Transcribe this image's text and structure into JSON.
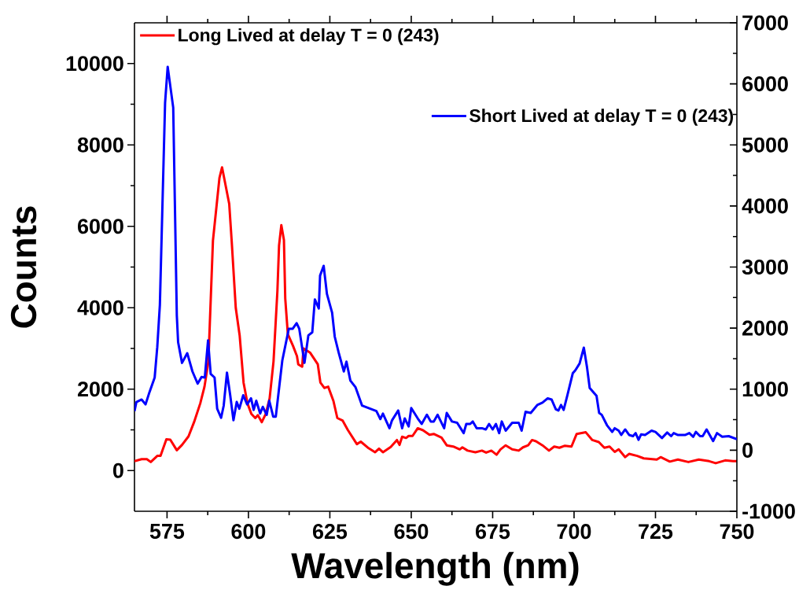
{
  "chart_data": {
    "type": "line",
    "xlabel": "Wavelength (nm)",
    "ylabel": "Counts",
    "xlim": [
      565,
      750
    ],
    "xticks": [
      575,
      600,
      625,
      650,
      675,
      700,
      725,
      750
    ],
    "ylim": [
      -1000,
      11000
    ],
    "yticks": [
      0,
      2000,
      4000,
      6000,
      8000,
      10000
    ],
    "y2lim": [
      -1000,
      7000
    ],
    "y2ticks": [
      -1000,
      0,
      1000,
      2000,
      3000,
      4000,
      5000,
      6000,
      7000
    ],
    "legend": "top left",
    "marker": "none",
    "line_style": "solid",
    "grid": false,
    "series": [
      {
        "name": "Long Lived at delay T = 0 (243)",
        "color": "#ff0000",
        "x": [
          565,
          567.2,
          568.8,
          570,
          572,
          573,
          574.8,
          576,
          578,
          579.6,
          581.6,
          583.3,
          585.2,
          586.5,
          587.7,
          589.1,
          591.1,
          591.9,
          594.1,
          594.9,
          596.1,
          597.3,
          598.5,
          599.7,
          600.9,
          602.1,
          602.9,
          604.1,
          605.3,
          606.5,
          607.7,
          608.9,
          609.4,
          610.1,
          610.9,
          611.3,
          612.1,
          613.7,
          614.9,
          615.3,
          616.5,
          616.9,
          618.9,
          621.3,
          622.1,
          623.3,
          624.5,
          626.1,
          627.3,
          628.9,
          630.5,
          633.3,
          634.5,
          636.9,
          638.9,
          640.1,
          641.3,
          643.7,
          645.6,
          646.4,
          647.2,
          648.4,
          649.2,
          650.4,
          652,
          653.6,
          655.6,
          656.9,
          659.3,
          660.9,
          662.9,
          664.9,
          665.7,
          667.3,
          669.7,
          671.7,
          673,
          674.6,
          676.2,
          677.4,
          679,
          681,
          683,
          684.3,
          685.9,
          687.1,
          688.3,
          690.3,
          692.3,
          693.9,
          695.5,
          697.2,
          699.2,
          700.8,
          703.6,
          705.6,
          707.6,
          709.3,
          710.9,
          712.5,
          713.7,
          715.7,
          716.9,
          719.4,
          721.4,
          725.4,
          726.6,
          729.4,
          731.9,
          735.1,
          738.3,
          741.5,
          743.5,
          746.4,
          748.8,
          750
        ],
        "values": [
          230,
          280,
          280,
          210,
          360,
          360,
          770,
          760,
          500,
          630,
          840,
          1190,
          1650,
          2060,
          2680,
          5650,
          7190,
          7450,
          6550,
          5580,
          4000,
          3320,
          2160,
          1650,
          1390,
          1290,
          1360,
          1190,
          1390,
          1770,
          2680,
          4420,
          5530,
          6030,
          5660,
          4230,
          3350,
          3060,
          2810,
          2610,
          2550,
          3000,
          2900,
          2610,
          2160,
          2030,
          2060,
          1710,
          1290,
          1230,
          1000,
          650,
          710,
          550,
          450,
          540,
          450,
          580,
          750,
          630,
          830,
          800,
          850,
          850,
          1040,
          990,
          880,
          900,
          810,
          620,
          590,
          520,
          570,
          490,
          450,
          490,
          440,
          490,
          390,
          520,
          620,
          520,
          490,
          570,
          620,
          750,
          720,
          620,
          490,
          590,
          560,
          610,
          590,
          900,
          940,
          750,
          700,
          560,
          590,
          460,
          520,
          330,
          410,
          360,
          300,
          270,
          330,
          220,
          270,
          210,
          270,
          230,
          180,
          250,
          230,
          230
        ]
      },
      {
        "name": "Short Lived at delay T = 0 (243)",
        "color": "#0000ff",
        "axis": "y2",
        "x": [
          565,
          565.6,
          567.2,
          568.4,
          569.6,
          571.2,
          572,
          572.8,
          574.4,
          575.2,
          576.9,
          578,
          578.4,
          579.6,
          581.2,
          582.8,
          584.4,
          585.6,
          586.6,
          587.6,
          588.4,
          589.6,
          590.4,
          591.6,
          592.4,
          593.4,
          594.4,
          595.4,
          596.4,
          597.2,
          598.4,
          599.6,
          600.8,
          601.6,
          602.4,
          603.6,
          604.4,
          605.6,
          606.4,
          607.6,
          608.4,
          610.4,
          612.4,
          613.6,
          614.8,
          615.6,
          617.2,
          618.4,
          619.6,
          620.4,
          621.6,
          622,
          623.1,
          624.1,
          625.7,
          626.5,
          627.7,
          629.3,
          630.1,
          631.3,
          632.9,
          634.9,
          639.3,
          640.5,
          641.3,
          643.3,
          644.1,
          646,
          647.2,
          648,
          649.2,
          650,
          652,
          653.2,
          654.8,
          656,
          656.9,
          658.1,
          660.1,
          660.9,
          662.5,
          664.1,
          666.1,
          666.9,
          668.1,
          668.9,
          670.1,
          671.7,
          672.9,
          673.9,
          675,
          676,
          677,
          677.8,
          679,
          681,
          683,
          683.9,
          685.1,
          686.7,
          688.7,
          690.3,
          691.9,
          693.1,
          694.4,
          695.2,
          696,
          696.8,
          698,
          699.6,
          700.4,
          701.7,
          703,
          704,
          704.8,
          706.9,
          707.7,
          708.5,
          710.1,
          711.7,
          712.5,
          713.7,
          714.5,
          715.7,
          716.9,
          718.1,
          718.9,
          719.8,
          720.6,
          721.8,
          723.8,
          725,
          727,
          728.6,
          729.8,
          730.6,
          731.8,
          734.2,
          735.4,
          736.6,
          737.4,
          738.7,
          739.5,
          740.7,
          742.7,
          743.9,
          745.5,
          747.5,
          750
        ],
        "values": [
          640,
          790,
          830,
          750,
          950,
          1190,
          1690,
          2380,
          5690,
          6280,
          5610,
          2210,
          1770,
          1430,
          1590,
          1290,
          1090,
          1200,
          1190,
          1800,
          1250,
          1190,
          680,
          530,
          730,
          1270,
          900,
          490,
          790,
          680,
          900,
          750,
          850,
          660,
          810,
          600,
          710,
          580,
          810,
          550,
          550,
          1470,
          1990,
          1990,
          2080,
          1990,
          1430,
          1880,
          1930,
          2470,
          2320,
          2860,
          3020,
          2560,
          2250,
          1860,
          1600,
          1290,
          1450,
          1140,
          1030,
          730,
          640,
          510,
          600,
          360,
          490,
          650,
          360,
          520,
          390,
          690,
          520,
          430,
          580,
          470,
          470,
          580,
          360,
          610,
          470,
          450,
          280,
          430,
          430,
          470,
          360,
          360,
          340,
          430,
          340,
          430,
          280,
          470,
          320,
          450,
          450,
          320,
          630,
          610,
          740,
          780,
          850,
          830,
          670,
          650,
          740,
          660,
          910,
          1260,
          1310,
          1420,
          1680,
          1350,
          1020,
          890,
          610,
          580,
          410,
          300,
          360,
          320,
          250,
          340,
          250,
          230,
          280,
          170,
          260,
          250,
          320,
          300,
          200,
          290,
          230,
          280,
          250,
          250,
          280,
          220,
          300,
          230,
          230,
          340,
          150,
          280,
          220,
          230,
          180
        ]
      }
    ]
  }
}
